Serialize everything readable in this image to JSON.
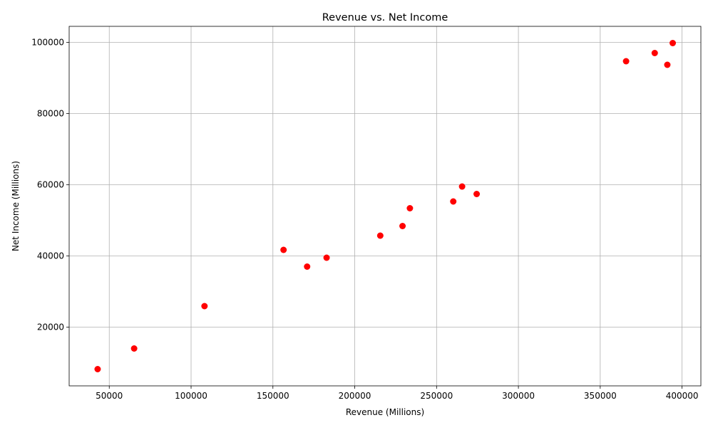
{
  "chart_data": {
    "type": "scatter",
    "title": "Revenue vs. Net Income",
    "xlabel": "Revenue (Millions)",
    "ylabel": "Net Income (Millions)",
    "xlim": [
      25500,
      411500
    ],
    "ylim": [
      3500,
      104500
    ],
    "xticks": [
      50000,
      100000,
      150000,
      200000,
      250000,
      300000,
      350000,
      400000
    ],
    "yticks": [
      20000,
      40000,
      60000,
      80000,
      100000
    ],
    "grid": true,
    "marker_color": "#ff0000",
    "points": [
      {
        "x": 42900,
        "y": 8200
      },
      {
        "x": 65200,
        "y": 14000
      },
      {
        "x": 108200,
        "y": 25900
      },
      {
        "x": 156500,
        "y": 41700
      },
      {
        "x": 170900,
        "y": 37000
      },
      {
        "x": 182800,
        "y": 39500
      },
      {
        "x": 215600,
        "y": 45700
      },
      {
        "x": 229200,
        "y": 48400
      },
      {
        "x": 233700,
        "y": 53400
      },
      {
        "x": 260200,
        "y": 55300
      },
      {
        "x": 265600,
        "y": 59500
      },
      {
        "x": 274500,
        "y": 57400
      },
      {
        "x": 365800,
        "y": 94700
      },
      {
        "x": 383300,
        "y": 97000
      },
      {
        "x": 391000,
        "y": 93700
      },
      {
        "x": 394300,
        "y": 99800
      }
    ]
  }
}
